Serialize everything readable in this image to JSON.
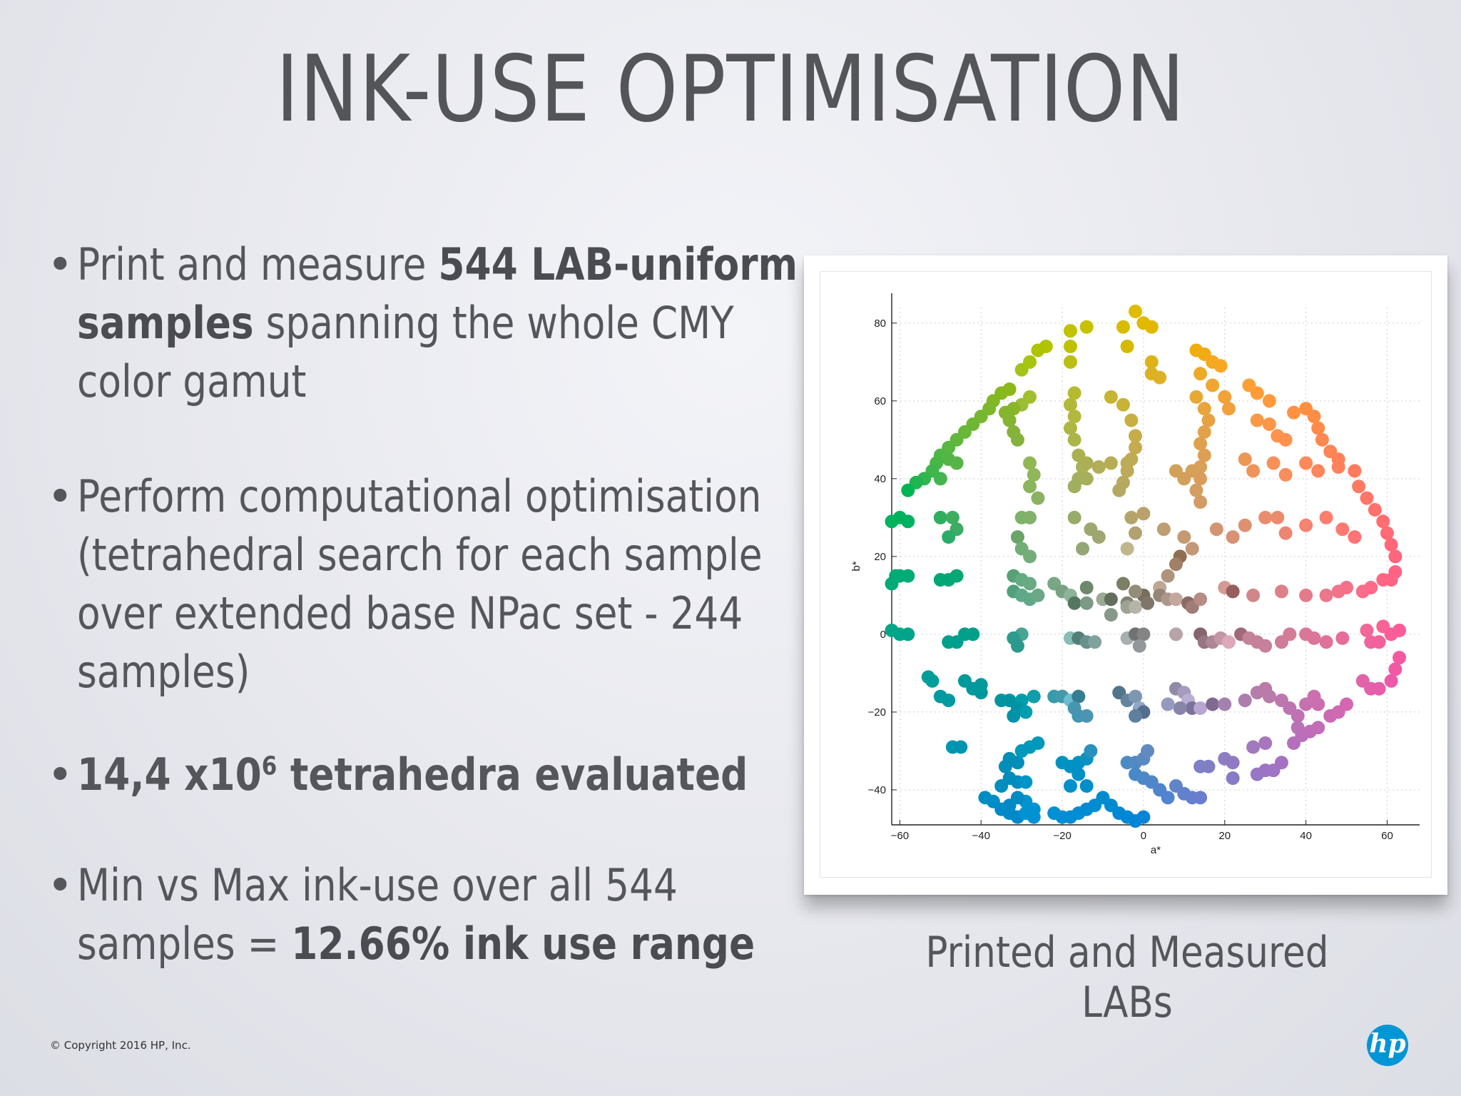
{
  "slide": {
    "title": "INK-USE OPTIMISATION",
    "copyright": "© Copyright 2016 HP, Inc.",
    "logo_text": "hp",
    "caption": "Printed and Measured LABs"
  },
  "bullets": [
    {
      "marker": "•",
      "parts": [
        {
          "text": "Print and measure ",
          "bold": false
        },
        {
          "text": "544 LAB-uniform samples",
          "bold": true
        },
        {
          "text": " spanning the whole CMY color gamut",
          "bold": false
        }
      ]
    },
    {
      "marker": "•",
      "parts": [
        {
          "text": "Perform computational optimisation (tetrahedral search for each sample over extended base NPac set - 244 samples)",
          "bold": false
        }
      ]
    },
    {
      "marker": "•",
      "parts": [
        {
          "text": "14,4 x10",
          "bold": true
        },
        {
          "text": "6",
          "bold": true,
          "sup": true
        },
        {
          "text": " tetrahedra evaluated",
          "bold": true
        }
      ]
    },
    {
      "marker": "•",
      "parts": [
        {
          "text": "Min vs Max ink-use over all 544 samples = ",
          "bold": false
        },
        {
          "text": "12.66% ink use range",
          "bold": true
        }
      ]
    }
  ],
  "chart_data": {
    "type": "scatter",
    "xlabel": "a*",
    "ylabel": "b*",
    "xlim": [
      -62,
      68
    ],
    "ylim": [
      -49,
      84
    ],
    "xticks": [
      -60,
      -40,
      -20,
      0,
      20,
      40,
      60
    ],
    "yticks": [
      -40,
      -20,
      0,
      20,
      40,
      60,
      80
    ],
    "grid": true,
    "point_color": "sample color (a*, b*)",
    "points": [
      [
        -2,
        83
      ],
      [
        0,
        80
      ],
      [
        2,
        79
      ],
      [
        -5,
        79
      ],
      [
        -14,
        79
      ],
      [
        -18,
        78
      ],
      [
        -18,
        74
      ],
      [
        -18,
        70
      ],
      [
        -4,
        74
      ],
      [
        2,
        70
      ],
      [
        2,
        67
      ],
      [
        4,
        66
      ],
      [
        13,
        73
      ],
      [
        15,
        72
      ],
      [
        17,
        70
      ],
      [
        19,
        69
      ],
      [
        14,
        67
      ],
      [
        17,
        64
      ],
      [
        20,
        61
      ],
      [
        21,
        58
      ],
      [
        26,
        64
      ],
      [
        28,
        62
      ],
      [
        31,
        60
      ],
      [
        -24,
        74
      ],
      [
        -26,
        73
      ],
      [
        -28,
        70
      ],
      [
        -30,
        68
      ],
      [
        -33,
        63
      ],
      [
        -35,
        62
      ],
      [
        -37,
        60
      ],
      [
        -38,
        58
      ],
      [
        -40,
        56
      ],
      [
        -42,
        54
      ],
      [
        -44,
        52
      ],
      [
        -46,
        50
      ],
      [
        -48,
        48
      ],
      [
        -50,
        46
      ],
      [
        -51,
        44
      ],
      [
        -52,
        42
      ],
      [
        -54,
        40
      ],
      [
        -56,
        39
      ],
      [
        -58,
        37
      ],
      [
        -28,
        61
      ],
      [
        -30,
        59
      ],
      [
        -32,
        58
      ],
      [
        -34,
        57
      ],
      [
        -33,
        55
      ],
      [
        -32,
        52
      ],
      [
        -31,
        50
      ],
      [
        -17,
        62
      ],
      [
        -18,
        59
      ],
      [
        -17,
        56
      ],
      [
        -18,
        53
      ],
      [
        -17,
        50
      ],
      [
        -16,
        46
      ],
      [
        -15,
        43
      ],
      [
        -16,
        40
      ],
      [
        -17,
        38
      ],
      [
        -8,
        61
      ],
      [
        -5,
        59
      ],
      [
        -3,
        55
      ],
      [
        -2,
        51
      ],
      [
        -2,
        48
      ],
      [
        -3,
        45
      ],
      [
        -4,
        42
      ],
      [
        -5,
        39
      ],
      [
        -6,
        37
      ],
      [
        13,
        61
      ],
      [
        15,
        58
      ],
      [
        16,
        55
      ],
      [
        15,
        52
      ],
      [
        14,
        49
      ],
      [
        15,
        46
      ],
      [
        14,
        43
      ],
      [
        14,
        40
      ],
      [
        13,
        37
      ],
      [
        14,
        34
      ],
      [
        28,
        55
      ],
      [
        31,
        54
      ],
      [
        33,
        51
      ],
      [
        35,
        50
      ],
      [
        37,
        57
      ],
      [
        40,
        58
      ],
      [
        42,
        56
      ],
      [
        43,
        53
      ],
      [
        44,
        50
      ],
      [
        46,
        47
      ],
      [
        48,
        45
      ],
      [
        48,
        43
      ],
      [
        52,
        42
      ],
      [
        53,
        38
      ],
      [
        55,
        35
      ],
      [
        57,
        32
      ],
      [
        59,
        29
      ],
      [
        60,
        26
      ],
      [
        61,
        23
      ],
      [
        62,
        20
      ],
      [
        62,
        16
      ],
      [
        -48,
        45
      ],
      [
        -46,
        44
      ],
      [
        -50,
        40
      ],
      [
        -28,
        44
      ],
      [
        -27,
        41
      ],
      [
        -28,
        38
      ],
      [
        -26,
        35
      ],
      [
        -14,
        44
      ],
      [
        -11,
        43
      ],
      [
        -14,
        40
      ],
      [
        -8,
        44
      ],
      [
        -4,
        44
      ],
      [
        8,
        42
      ],
      [
        10,
        40
      ],
      [
        12,
        42
      ],
      [
        25,
        45
      ],
      [
        27,
        42
      ],
      [
        32,
        44
      ],
      [
        35,
        41
      ],
      [
        40,
        44
      ],
      [
        43,
        42
      ],
      [
        -62,
        29
      ],
      [
        -60,
        30
      ],
      [
        -58,
        29
      ],
      [
        -50,
        30
      ],
      [
        -47,
        30
      ],
      [
        -46,
        27
      ],
      [
        -48,
        25
      ],
      [
        -30,
        30
      ],
      [
        -28,
        30
      ],
      [
        -31,
        25
      ],
      [
        -30,
        22
      ],
      [
        -28,
        20
      ],
      [
        -17,
        30
      ],
      [
        -13,
        27
      ],
      [
        -11,
        25
      ],
      [
        -15,
        22
      ],
      [
        -3,
        30
      ],
      [
        -2,
        26
      ],
      [
        -4,
        22
      ],
      [
        0,
        31
      ],
      [
        5,
        27
      ],
      [
        10,
        25
      ],
      [
        12,
        22
      ],
      [
        9,
        20
      ],
      [
        8,
        18
      ],
      [
        6,
        15
      ],
      [
        4,
        12
      ],
      [
        0,
        10
      ],
      [
        -4,
        8
      ],
      [
        -8,
        5
      ],
      [
        18,
        27
      ],
      [
        22,
        25
      ],
      [
        25,
        28
      ],
      [
        30,
        30
      ],
      [
        33,
        30
      ],
      [
        35,
        26
      ],
      [
        40,
        28
      ],
      [
        45,
        30
      ],
      [
        49,
        27
      ],
      [
        52,
        25
      ],
      [
        -61,
        15
      ],
      [
        -60,
        15
      ],
      [
        -58,
        15
      ],
      [
        -62,
        13
      ],
      [
        -50,
        14
      ],
      [
        -48,
        14
      ],
      [
        -46,
        15
      ],
      [
        -32,
        15
      ],
      [
        -30,
        14
      ],
      [
        -28,
        13
      ],
      [
        -32,
        11
      ],
      [
        -30,
        10
      ],
      [
        -28,
        9
      ],
      [
        -26,
        10
      ],
      [
        -22,
        13
      ],
      [
        -20,
        11
      ],
      [
        -18,
        10
      ],
      [
        -17,
        8
      ],
      [
        -14,
        12
      ],
      [
        -14,
        8
      ],
      [
        -10,
        9
      ],
      [
        -8,
        9
      ],
      [
        -5,
        13
      ],
      [
        -2,
        11
      ],
      [
        -4,
        7
      ],
      [
        -2,
        7
      ],
      [
        1,
        8
      ],
      [
        4,
        10
      ],
      [
        6,
        9
      ],
      [
        8,
        9
      ],
      [
        11,
        8
      ],
      [
        12,
        7
      ],
      [
        14,
        9
      ],
      [
        20,
        12
      ],
      [
        22,
        11
      ],
      [
        27,
        10
      ],
      [
        34,
        11
      ],
      [
        40,
        10
      ],
      [
        45,
        10
      ],
      [
        48,
        11
      ],
      [
        50,
        12
      ],
      [
        54,
        11
      ],
      [
        56,
        12
      ],
      [
        59,
        14
      ],
      [
        61,
        14
      ],
      [
        -62,
        1
      ],
      [
        -60,
        0
      ],
      [
        -58,
        0
      ],
      [
        -48,
        -2
      ],
      [
        -46,
        -2
      ],
      [
        -44,
        0
      ],
      [
        -42,
        0
      ],
      [
        -30,
        0
      ],
      [
        -32,
        -1
      ],
      [
        -31,
        -3
      ],
      [
        -18,
        -1
      ],
      [
        -16,
        -1
      ],
      [
        -14,
        -2
      ],
      [
        -12,
        -2
      ],
      [
        -4,
        -1
      ],
      [
        -2,
        0
      ],
      [
        0,
        0
      ],
      [
        -1,
        -3
      ],
      [
        8,
        0
      ],
      [
        14,
        0
      ],
      [
        15,
        -2
      ],
      [
        17,
        -2
      ],
      [
        19,
        -1
      ],
      [
        21,
        -2
      ],
      [
        24,
        0
      ],
      [
        26,
        -1
      ],
      [
        28,
        -2
      ],
      [
        30,
        -3
      ],
      [
        34,
        -2
      ],
      [
        36,
        0
      ],
      [
        40,
        0
      ],
      [
        42,
        -1
      ],
      [
        45,
        -2
      ],
      [
        49,
        -1
      ],
      [
        55,
        1
      ],
      [
        56,
        -2
      ],
      [
        58,
        -2
      ],
      [
        59,
        2
      ],
      [
        61,
        0
      ],
      [
        63,
        1
      ],
      [
        -53,
        -11
      ],
      [
        -52,
        -12
      ],
      [
        -44,
        -12
      ],
      [
        -42,
        -14
      ],
      [
        -40,
        -15
      ],
      [
        -40,
        -13
      ],
      [
        -50,
        -16
      ],
      [
        -48,
        -17
      ],
      [
        -35,
        -17
      ],
      [
        -33,
        -17
      ],
      [
        -30,
        -17
      ],
      [
        -27,
        -16
      ],
      [
        -31,
        -19
      ],
      [
        -29,
        -20
      ],
      [
        -32,
        -21
      ],
      [
        -22,
        -16
      ],
      [
        -20,
        -16
      ],
      [
        -18,
        -17
      ],
      [
        -16,
        -16
      ],
      [
        -17,
        -19
      ],
      [
        -16,
        -21
      ],
      [
        -14,
        -21
      ],
      [
        -6,
        -15
      ],
      [
        -4,
        -17
      ],
      [
        -2,
        -16
      ],
      [
        -1,
        -19
      ],
      [
        0,
        -20
      ],
      [
        -2,
        -21
      ],
      [
        8,
        -14
      ],
      [
        10,
        -15
      ],
      [
        11,
        -17
      ],
      [
        12,
        -19
      ],
      [
        9,
        -19
      ],
      [
        6,
        -18
      ],
      [
        14,
        -19
      ],
      [
        17,
        -18
      ],
      [
        20,
        -18
      ],
      [
        25,
        -17
      ],
      [
        28,
        -15
      ],
      [
        30,
        -14
      ],
      [
        31,
        -16
      ],
      [
        34,
        -17
      ],
      [
        36,
        -19
      ],
      [
        38,
        -21
      ],
      [
        38,
        -24
      ],
      [
        40,
        -18
      ],
      [
        42,
        -16
      ],
      [
        43,
        -18
      ],
      [
        46,
        -21
      ],
      [
        48,
        -20
      ],
      [
        50,
        -18
      ],
      [
        54,
        -12
      ],
      [
        56,
        -14
      ],
      [
        58,
        -14
      ],
      [
        61,
        -12
      ],
      [
        62,
        -9
      ],
      [
        63,
        -6
      ],
      [
        -47,
        -29
      ],
      [
        -45,
        -29
      ],
      [
        -33,
        -32
      ],
      [
        -31,
        -33
      ],
      [
        -30,
        -30
      ],
      [
        -28,
        -29
      ],
      [
        -26,
        -28
      ],
      [
        -34,
        -34
      ],
      [
        -33,
        -37
      ],
      [
        -35,
        -39
      ],
      [
        -31,
        -38
      ],
      [
        -29,
        -38
      ],
      [
        -20,
        -33
      ],
      [
        -18,
        -34
      ],
      [
        -16,
        -33
      ],
      [
        -14,
        -32
      ],
      [
        -13,
        -30
      ],
      [
        -16,
        -36
      ],
      [
        -18,
        -39
      ],
      [
        -14,
        -39
      ],
      [
        -4,
        -33
      ],
      [
        -2,
        -33
      ],
      [
        0,
        -32
      ],
      [
        1,
        -30
      ],
      [
        -2,
        -36
      ],
      [
        0,
        -37
      ],
      [
        2,
        -38
      ],
      [
        4,
        -40
      ],
      [
        6,
        -42
      ],
      [
        8,
        -39
      ],
      [
        10,
        -41
      ],
      [
        12,
        -42
      ],
      [
        14,
        -42
      ],
      [
        14,
        -34
      ],
      [
        16,
        -34
      ],
      [
        20,
        -32
      ],
      [
        22,
        -33
      ],
      [
        22,
        -37
      ],
      [
        28,
        -36
      ],
      [
        30,
        -35
      ],
      [
        32,
        -35
      ],
      [
        34,
        -33
      ],
      [
        27,
        -29
      ],
      [
        30,
        -28
      ],
      [
        37,
        -28
      ],
      [
        39,
        -26
      ],
      [
        41,
        -25
      ],
      [
        43,
        -24
      ],
      [
        -39,
        -42
      ],
      [
        -37,
        -43
      ],
      [
        -35,
        -45
      ],
      [
        -33,
        -46
      ],
      [
        -31,
        -47
      ],
      [
        -29,
        -43
      ],
      [
        -27,
        -45
      ],
      [
        -22,
        -46
      ],
      [
        -20,
        -47
      ],
      [
        -18,
        -47
      ],
      [
        -16,
        -46
      ],
      [
        -14,
        -45
      ],
      [
        -12,
        -44
      ],
      [
        -10,
        -42
      ],
      [
        -8,
        -44
      ],
      [
        -6,
        -46
      ],
      [
        -4,
        -47
      ],
      [
        -2,
        -48
      ],
      [
        0,
        -47
      ],
      [
        -33,
        -44
      ],
      [
        -31,
        -42
      ],
      [
        -29,
        -46
      ],
      [
        -27,
        -47
      ]
    ]
  }
}
